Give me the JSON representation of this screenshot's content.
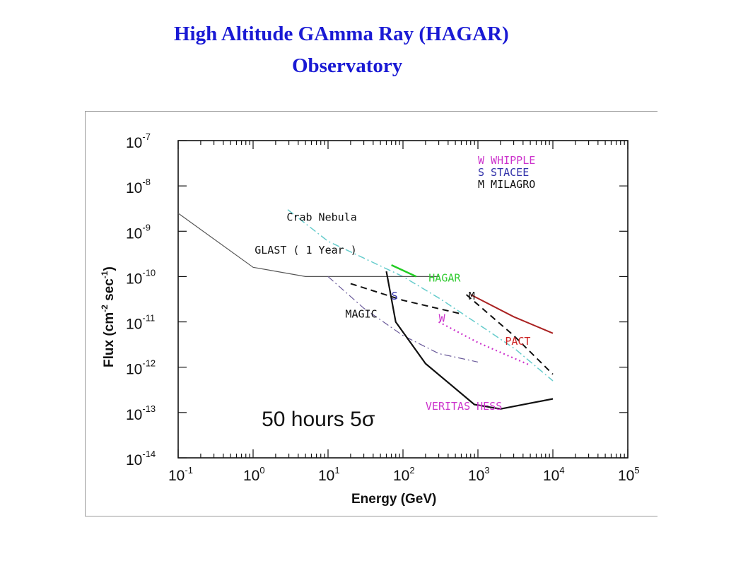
{
  "slide": {
    "title_line1": "High Altitude GAmma Ray (HAGAR)",
    "title_line2": "Observatory"
  },
  "chart_data": {
    "type": "line",
    "xlabel": "Energy (GeV)",
    "ylabel": "Flux (cm-2 sec-1)",
    "ylabel_parts": [
      "Flux",
      "(cm",
      "-2",
      " sec",
      "-1",
      ")"
    ],
    "x_scale": "log",
    "y_scale": "log",
    "xlim": [
      0.1,
      100000
    ],
    "ylim": [
      1e-14,
      1e-07
    ],
    "x_ticks": [
      {
        "base": "10",
        "exp": "-1",
        "value": 0.1
      },
      {
        "base": "10",
        "exp": "0",
        "value": 1
      },
      {
        "base": "10",
        "exp": "1",
        "value": 10
      },
      {
        "base": "10",
        "exp": "2",
        "value": 100
      },
      {
        "base": "10",
        "exp": "3",
        "value": 1000
      },
      {
        "base": "10",
        "exp": "4",
        "value": 10000
      },
      {
        "base": "10",
        "exp": "5",
        "value": 100000
      }
    ],
    "y_ticks": [
      {
        "base": "10",
        "exp": "-7",
        "value": 1e-07
      },
      {
        "base": "10",
        "exp": "-8",
        "value": 1e-08
      },
      {
        "base": "10",
        "exp": "-9",
        "value": 1e-09
      },
      {
        "base": "10",
        "exp": "-10",
        "value": 1e-10
      },
      {
        "base": "10",
        "exp": "-11",
        "value": 1e-11
      },
      {
        "base": "10",
        "exp": "-12",
        "value": 1e-12
      },
      {
        "base": "10",
        "exp": "-13",
        "value": 1e-13
      },
      {
        "base": "10",
        "exp": "-14",
        "value": 1e-14
      }
    ],
    "legend": [
      {
        "key": "W",
        "name": "WHIPPLE",
        "color": "#cc33cc"
      },
      {
        "key": "S",
        "name": "STACEE",
        "color": "#3333aa"
      },
      {
        "key": "M",
        "name": "MILAGRO",
        "color": "#111111"
      }
    ],
    "series": [
      {
        "name": "Crab Nebula",
        "color": "#66cccc",
        "style": "dashdot",
        "width": 1.5,
        "x": [
          2.9,
          10,
          100,
          316,
          1000,
          3162,
          10000
        ],
        "y": [
          3e-09,
          6e-10,
          1e-10,
          3.2e-11,
          9e-12,
          2.5e-12,
          5e-13
        ]
      },
      {
        "name": "GLAST ( 1 Year )",
        "color": "#555555",
        "style": "solid",
        "width": 1.2,
        "x": [
          0.1,
          1,
          5,
          10,
          100,
          300
        ],
        "y": [
          2.5e-09,
          1.6e-10,
          1e-10,
          1e-10,
          1e-10,
          1e-10
        ]
      },
      {
        "name": "MAGIC",
        "color": "#6a5a9a",
        "style": "dashdot",
        "width": 1.2,
        "x": [
          10,
          30,
          100,
          300,
          1000
        ],
        "y": [
          1e-10,
          2e-11,
          5e-12,
          2e-12,
          1.3e-12
        ]
      },
      {
        "name": "HAGAR",
        "color": "#22cc22",
        "style": "solid",
        "width": 2.5,
        "x": [
          70,
          150
        ],
        "y": [
          1.8e-10,
          1e-10
        ]
      },
      {
        "name": "VERITAS HESS",
        "color": "#111111",
        "style": "solid",
        "width": 2.2,
        "x": [
          60,
          80,
          200,
          900,
          2000,
          10000
        ],
        "y": [
          1.3e-10,
          1e-11,
          1.2e-12,
          1.5e-13,
          1.2e-13,
          2e-13
        ]
      },
      {
        "name": "S",
        "color": "#111111",
        "style": "dashed",
        "width": 2,
        "x": [
          20,
          100,
          600
        ],
        "y": [
          7e-11,
          3e-11,
          1.5e-11
        ]
      },
      {
        "name": "M",
        "color": "#111111",
        "style": "dashed",
        "width": 2,
        "x": [
          700,
          3000,
          10000
        ],
        "y": [
          4e-11,
          5e-12,
          7e-13
        ]
      },
      {
        "name": "PACT",
        "color": "#aa2222",
        "style": "solid",
        "width": 2,
        "x": [
          800,
          3000,
          10000
        ],
        "y": [
          4e-11,
          1.3e-11,
          5.6e-12
        ]
      },
      {
        "name": "W",
        "color": "#cc33cc",
        "style": "dotted",
        "width": 2.2,
        "x": [
          300,
          1000,
          5000
        ],
        "y": [
          1e-11,
          3.5e-12,
          1.1e-12
        ]
      }
    ],
    "annotations": [
      {
        "text": "Crab Nebula",
        "x": 2.8,
        "y": 1.7e-09,
        "color": "#111111"
      },
      {
        "text": "GLAST ( 1 Year )",
        "x": 1.05,
        "y": 3.2e-10,
        "color": "#111111"
      },
      {
        "text": "HAGAR",
        "x": 220,
        "y": 7.8e-11,
        "color": "#33cc33"
      },
      {
        "text": "S",
        "x": 70,
        "y": 3.1e-11,
        "color": "#3333aa"
      },
      {
        "text": "M",
        "x": 750,
        "y": 3.1e-11,
        "color": "#111111"
      },
      {
        "text": "MAGIC",
        "x": 17,
        "y": 1.25e-11,
        "color": "#111111"
      },
      {
        "text": "W",
        "x": 300,
        "y": 1e-11,
        "color": "#cc33cc"
      },
      {
        "text": "PACT",
        "x": 2300,
        "y": 3.1e-12,
        "color": "#cc2222"
      },
      {
        "text": "VERITAS HESS",
        "x": 200,
        "y": 1.15e-13,
        "color": "#cc33cc"
      },
      {
        "text": "50 hours 5σ",
        "x": 1.3,
        "y": 5e-14,
        "color": "#111111",
        "big": true
      }
    ],
    "grid": false
  }
}
